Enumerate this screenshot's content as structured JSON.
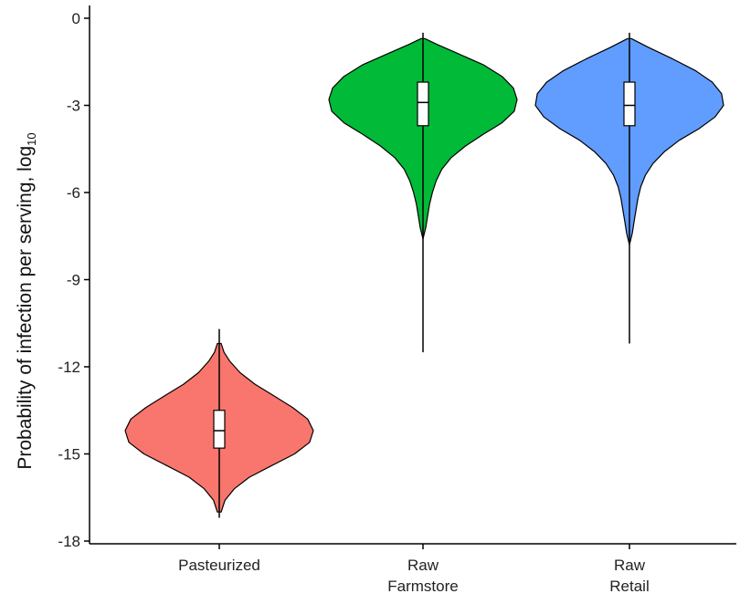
{
  "chart_data": {
    "type": "violin",
    "title": "",
    "xlabel": "",
    "ylabel": "Probability of infection per serving, log",
    "ylabel_subscript": "10",
    "ylim": [
      -18,
      0
    ],
    "yticks": [
      "0",
      "-3",
      "-6",
      "-9",
      "-12",
      "-15",
      "-18"
    ],
    "ytick_values": [
      0,
      -3,
      -6,
      -9,
      -12,
      -15,
      -18
    ],
    "grid": false,
    "legend": "none",
    "categories": [
      {
        "label_lines": [
          "Pasteurized"
        ],
        "name": "Pasteurized"
      },
      {
        "label_lines": [
          "Raw",
          "Farmstore"
        ],
        "name": "Raw Farmstore"
      },
      {
        "label_lines": [
          "Raw",
          "Retail"
        ],
        "name": "Raw Retail"
      }
    ],
    "series": [
      {
        "category": "Pasteurized",
        "color": "#F8766D",
        "whisker_min": -17.2,
        "whisker_max": -10.7,
        "violin_min": -17.0,
        "violin_max": -11.2,
        "q1": -14.8,
        "median": -14.2,
        "q3": -13.5,
        "density": [
          [
            -17.0,
            0.02
          ],
          [
            -16.6,
            0.06
          ],
          [
            -16.2,
            0.16
          ],
          [
            -15.8,
            0.32
          ],
          [
            -15.4,
            0.56
          ],
          [
            -15.0,
            0.8
          ],
          [
            -14.6,
            0.96
          ],
          [
            -14.2,
            1.0
          ],
          [
            -13.8,
            0.94
          ],
          [
            -13.4,
            0.78
          ],
          [
            -13.0,
            0.58
          ],
          [
            -12.6,
            0.38
          ],
          [
            -12.2,
            0.22
          ],
          [
            -11.8,
            0.11
          ],
          [
            -11.5,
            0.05
          ],
          [
            -11.2,
            0.02
          ]
        ]
      },
      {
        "category": "Raw Farmstore",
        "color": "#00BA38",
        "whisker_min": -11.5,
        "whisker_max": -0.5,
        "violin_min": -7.6,
        "violin_max": -0.7,
        "q1": -3.7,
        "median": -2.9,
        "q3": -2.2,
        "density": [
          [
            -7.6,
            0.0
          ],
          [
            -7.2,
            0.03
          ],
          [
            -6.8,
            0.05
          ],
          [
            -6.4,
            0.07
          ],
          [
            -6.0,
            0.1
          ],
          [
            -5.6,
            0.14
          ],
          [
            -5.2,
            0.2
          ],
          [
            -4.8,
            0.3
          ],
          [
            -4.4,
            0.45
          ],
          [
            -4.0,
            0.64
          ],
          [
            -3.6,
            0.84
          ],
          [
            -3.2,
            0.97
          ],
          [
            -2.8,
            1.0
          ],
          [
            -2.4,
            0.96
          ],
          [
            -2.0,
            0.84
          ],
          [
            -1.6,
            0.64
          ],
          [
            -1.2,
            0.36
          ],
          [
            -0.9,
            0.15
          ],
          [
            -0.7,
            0.02
          ]
        ]
      },
      {
        "category": "Raw Retail",
        "color": "#619CFF",
        "whisker_min": -11.2,
        "whisker_max": -0.5,
        "violin_min": -7.8,
        "violin_max": -0.7,
        "q1": -3.7,
        "median": -3.0,
        "q3": -2.2,
        "density": [
          [
            -7.8,
            0.0
          ],
          [
            -7.4,
            0.03
          ],
          [
            -7.0,
            0.05
          ],
          [
            -6.6,
            0.07
          ],
          [
            -6.2,
            0.09
          ],
          [
            -5.8,
            0.12
          ],
          [
            -5.4,
            0.17
          ],
          [
            -5.0,
            0.25
          ],
          [
            -4.6,
            0.37
          ],
          [
            -4.2,
            0.53
          ],
          [
            -3.8,
            0.74
          ],
          [
            -3.4,
            0.91
          ],
          [
            -3.0,
            1.0
          ],
          [
            -2.6,
            0.98
          ],
          [
            -2.2,
            0.88
          ],
          [
            -1.8,
            0.7
          ],
          [
            -1.4,
            0.46
          ],
          [
            -1.0,
            0.2
          ],
          [
            -0.7,
            0.02
          ]
        ]
      }
    ]
  }
}
